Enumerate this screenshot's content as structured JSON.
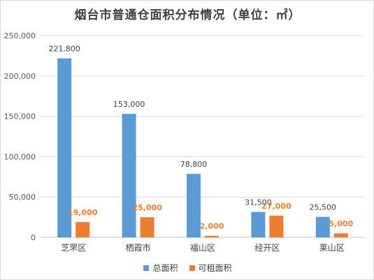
{
  "colors": {
    "total": "#5b9bd5",
    "rentable": "#ed7d31"
  },
  "chart_data": {
    "type": "bar",
    "title": "烟台市普通仓面积分布情况（单位：㎡）",
    "categories": [
      "芝罘区",
      "栖霞市",
      "福山区",
      "经开区",
      "莱山区"
    ],
    "series": [
      {
        "name": "总面积",
        "values": [
          221800,
          153000,
          78800,
          31500,
          25500
        ]
      },
      {
        "name": "可租面积",
        "values": [
          19000,
          25000,
          2000,
          27000,
          5000
        ]
      }
    ],
    "data_labels": {
      "总面积": [
        "221,800",
        "153,000",
        "78,800",
        "31,500",
        "25,500"
      ],
      "可租面积": [
        "19,000",
        "25,000",
        "2,000",
        "27,000",
        "5,000"
      ]
    },
    "y_ticks": [
      "0",
      "50,000",
      "100,000",
      "150,000",
      "200,000",
      "250,000"
    ],
    "ylim": [
      0,
      250000
    ],
    "grid": true,
    "legend_position": "bottom"
  }
}
